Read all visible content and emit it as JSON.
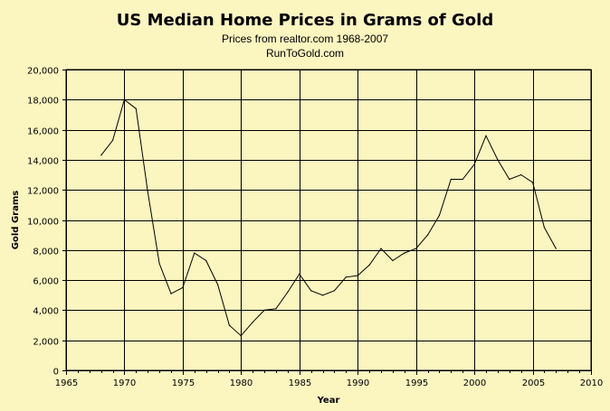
{
  "chart_data": {
    "type": "line",
    "title": "US Median Home Prices in Grams of Gold",
    "subtitle": "Prices from realtor.com 1968-2007",
    "subtitle2": "RunToGold.com",
    "xlabel": "Year",
    "ylabel": "Gold Grams",
    "xlim": [
      1965,
      2010
    ],
    "ylim": [
      0,
      20000
    ],
    "x_ticks": [
      1965,
      1970,
      1975,
      1980,
      1985,
      1990,
      1995,
      2000,
      2005,
      2010
    ],
    "x_minor_step": 1,
    "y_ticks": [
      0,
      2000,
      4000,
      6000,
      8000,
      10000,
      12000,
      14000,
      16000,
      18000,
      20000
    ],
    "y_tick_labels": [
      "0",
      "2,000",
      "4,000",
      "6,000",
      "8,000",
      "10,000",
      "12,000",
      "14,000",
      "16,000",
      "18,000",
      "20,000"
    ],
    "grid": "major x and y",
    "legend": "none",
    "colors": {
      "background": "#fbf5c0",
      "plot_area": "#fbf5c0",
      "line": "#000000",
      "grid": "#000000"
    },
    "series": [
      {
        "x": [
          1968,
          1969,
          1970,
          1971,
          1972,
          1973,
          1974,
          1975,
          1976,
          1977,
          1978,
          1979,
          1980,
          1981,
          1982,
          1983,
          1984,
          1985,
          1986,
          1987,
          1988,
          1989,
          1990,
          1991,
          1992,
          1993,
          1994,
          1995,
          1996,
          1997,
          1998,
          1999,
          2000,
          2001,
          2002,
          2003,
          2004,
          2005,
          2006,
          2007
        ],
        "values": [
          14300,
          15300,
          18000,
          17400,
          11900,
          7100,
          5100,
          5500,
          7800,
          7300,
          5700,
          3000,
          2300,
          3200,
          4000,
          4100,
          5200,
          6400,
          5300,
          5000,
          5300,
          6200,
          6300,
          7000,
          8100,
          7300,
          7800,
          8100,
          9000,
          10300,
          12700,
          12700,
          13700,
          15600,
          14000,
          12700,
          13000,
          12500,
          9500,
          8100
        ]
      }
    ]
  }
}
